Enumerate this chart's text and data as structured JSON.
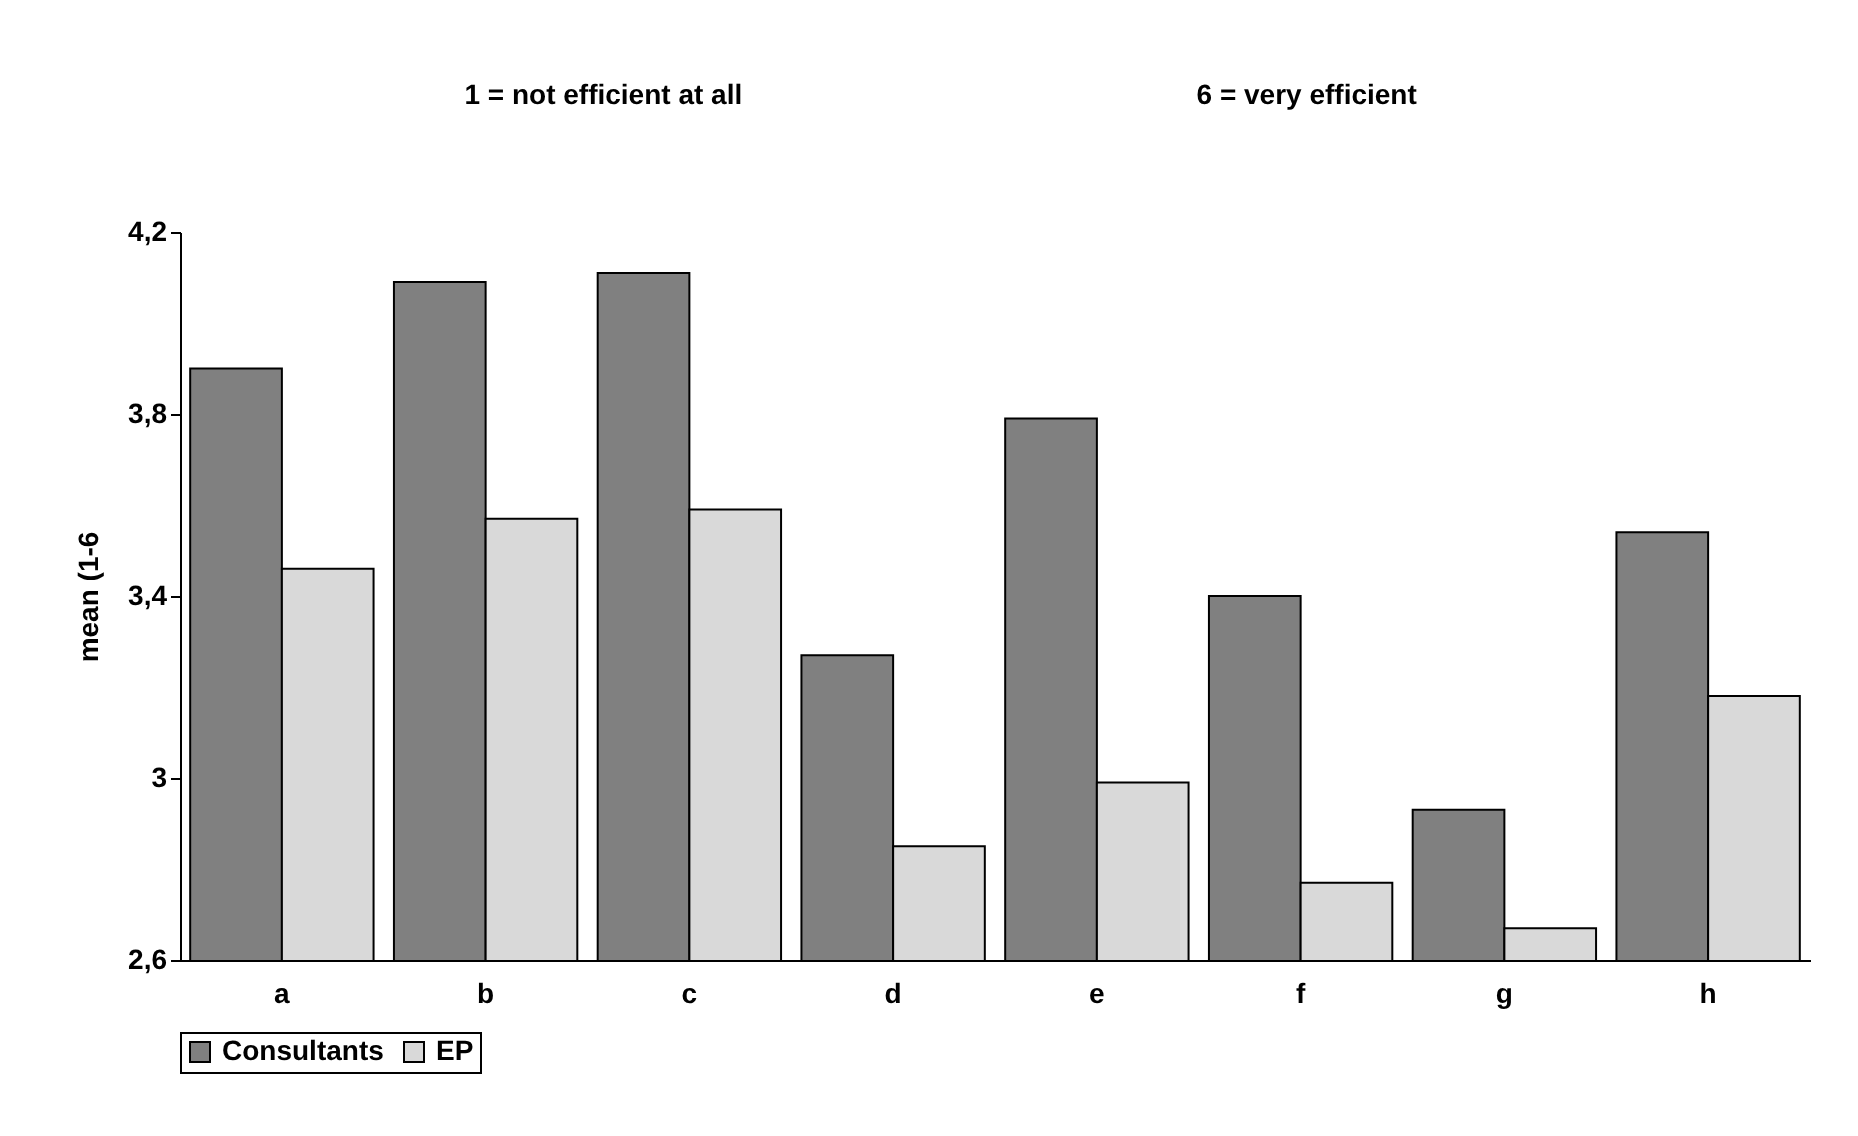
{
  "chart_data": {
    "type": "bar",
    "ylabel": "mean (1-6",
    "annotations": [
      "1 = not efficient at all",
      "6 = very efficient"
    ],
    "categories": [
      "a",
      "b",
      "c",
      "d",
      "e",
      "f",
      "g",
      "h"
    ],
    "series": [
      {
        "name": "Consultants",
        "color": "#808080",
        "values": [
          3.9,
          4.09,
          4.11,
          3.27,
          3.79,
          3.4,
          2.93,
          3.54
        ]
      },
      {
        "name": "EP",
        "color": "#d9d9d9",
        "values": [
          3.46,
          3.57,
          3.59,
          2.85,
          2.99,
          2.77,
          2.67,
          3.18
        ]
      }
    ],
    "ylim": [
      2.6,
      4.2
    ],
    "yticks": [
      {
        "value": 2.6,
        "label": "2,6"
      },
      {
        "value": 3,
        "label": "3"
      },
      {
        "value": 3.4,
        "label": "3,4"
      },
      {
        "value": 3.8,
        "label": "3,8"
      },
      {
        "value": 4.2,
        "label": "4,2"
      }
    ],
    "grid": false,
    "legend": "bottom"
  }
}
